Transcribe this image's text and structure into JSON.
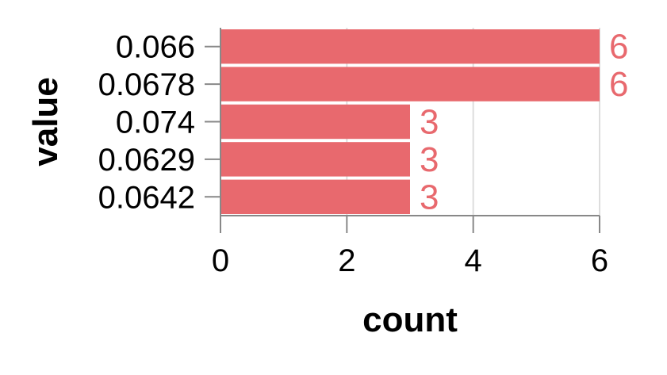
{
  "chart_data": {
    "type": "bar",
    "orientation": "horizontal",
    "categories": [
      "0.066",
      "0.0678",
      "0.074",
      "0.0629",
      "0.0642"
    ],
    "values": [
      6,
      6,
      3,
      3,
      3
    ],
    "xlabel": "count",
    "ylabel": "value",
    "xlim": [
      0,
      6
    ],
    "xticks": [
      0,
      2,
      4,
      6
    ],
    "grid": true,
    "data_labels": true,
    "bar_color": "#e8696e",
    "label_color": "#e8696e"
  }
}
